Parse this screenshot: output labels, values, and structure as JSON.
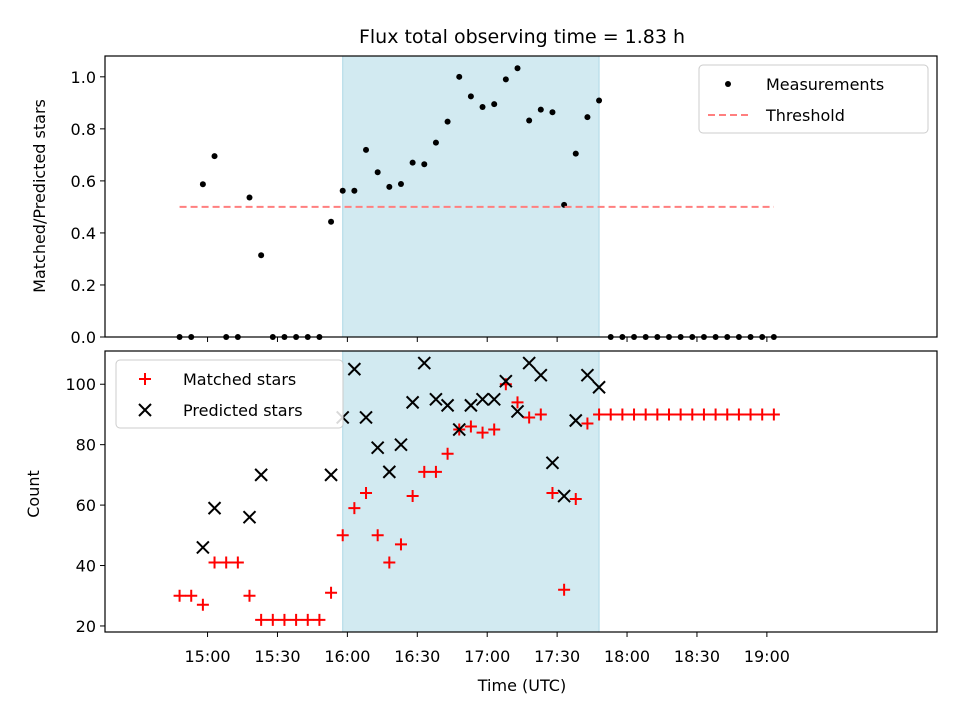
{
  "chart_data": [
    {
      "type": "scatter",
      "title": "Flux total observing time = 1.83 h",
      "ylabel": "Matched/Predicted stars",
      "xlabel": "",
      "ylim": [
        0,
        1.08
      ],
      "xlim_minutes_of_day": [
        856,
        1213
      ],
      "yticks": [
        "0.0",
        "0.2",
        "0.4",
        "0.6",
        "0.8",
        "1.0"
      ],
      "grid": false,
      "legend_position": "top-right",
      "highlight_span": [
        "15:58",
        "17:48"
      ],
      "highlight_color": "#add8e6",
      "series": [
        {
          "name": "Measurements",
          "marker": "dot",
          "color": "#000000",
          "x": [
            "14:48",
            "14:53",
            "14:58",
            "15:03",
            "15:08",
            "15:13",
            "15:18",
            "15:23",
            "15:28",
            "15:33",
            "15:38",
            "15:43",
            "15:48",
            "15:53",
            "15:58",
            "16:03",
            "16:08",
            "16:13",
            "16:18",
            "16:23",
            "16:28",
            "16:33",
            "16:38",
            "16:43",
            "16:48",
            "16:53",
            "16:58",
            "17:03",
            "17:08",
            "17:13",
            "17:18",
            "17:23",
            "17:28",
            "17:33",
            "17:38",
            "17:43",
            "17:48",
            "17:53",
            "17:58",
            "18:03",
            "18:08",
            "18:13",
            "18:18",
            "18:23",
            "18:28",
            "18:33",
            "18:38",
            "18:43",
            "18:48",
            "18:53",
            "18:58",
            "19:03"
          ],
          "y": [
            0,
            0,
            0.587,
            0.695,
            0,
            0,
            0.536,
            0.314,
            0,
            0,
            0,
            0,
            0,
            0.443,
            0.562,
            0.562,
            0.719,
            0.633,
            0.577,
            0.588,
            0.67,
            0.664,
            0.747,
            0.828,
            1.0,
            0.925,
            0.884,
            0.895,
            0.99,
            1.033,
            0.832,
            0.874,
            0.864,
            0.508,
            0.705,
            0.845,
            0.909,
            0,
            0,
            0,
            0,
            0,
            0,
            0,
            0,
            0,
            0,
            0,
            0,
            0,
            0,
            0
          ]
        },
        {
          "name": "Threshold",
          "marker": "dashed-line",
          "color": "#ff7f7f",
          "x": [
            "14:48",
            "19:03"
          ],
          "y": [
            0.5,
            0.5
          ]
        }
      ]
    },
    {
      "type": "scatter",
      "title": "",
      "ylabel": "Count",
      "xlabel": "Time (UTC)",
      "ylim": [
        18,
        111
      ],
      "xlim_minutes_of_day": [
        856,
        1213
      ],
      "yticks": [
        "20",
        "40",
        "60",
        "80",
        "100"
      ],
      "xticks": [
        "15:00",
        "15:30",
        "16:00",
        "16:30",
        "17:00",
        "17:30",
        "18:00",
        "18:30",
        "19:00"
      ],
      "grid": false,
      "legend_position": "top-left",
      "highlight_span": [
        "15:58",
        "17:48"
      ],
      "highlight_color": "#add8e6",
      "series": [
        {
          "name": "Matched stars",
          "marker": "plus",
          "color": "#ff0000",
          "x": [
            "14:48",
            "14:53",
            "14:58",
            "15:03",
            "15:08",
            "15:13",
            "15:18",
            "15:23",
            "15:28",
            "15:33",
            "15:38",
            "15:43",
            "15:48",
            "15:53",
            "15:58",
            "16:03",
            "16:08",
            "16:13",
            "16:18",
            "16:23",
            "16:28",
            "16:33",
            "16:38",
            "16:43",
            "16:48",
            "16:53",
            "16:58",
            "17:03",
            "17:08",
            "17:13",
            "17:18",
            "17:23",
            "17:28",
            "17:33",
            "17:38",
            "17:43",
            "17:48",
            "17:53",
            "17:58",
            "18:03",
            "18:08",
            "18:13",
            "18:18",
            "18:23",
            "18:28",
            "18:33",
            "18:38",
            "18:43",
            "18:48",
            "18:53",
            "18:58",
            "19:03"
          ],
          "y": [
            30,
            30,
            27,
            41,
            41,
            41,
            30,
            22,
            22,
            22,
            22,
            22,
            22,
            31,
            50,
            59,
            64,
            50,
            41,
            47,
            63,
            71,
            71,
            77,
            85,
            86,
            84,
            85,
            100,
            94,
            89,
            90,
            64,
            32,
            62,
            87,
            90,
            90,
            90,
            90,
            90,
            90,
            90,
            90,
            90,
            90,
            90,
            90,
            90,
            90,
            90,
            90
          ]
        },
        {
          "name": "Predicted stars",
          "marker": "x",
          "color": "#000000",
          "x": [
            "14:58",
            "15:03",
            "15:18",
            "15:23",
            "15:53",
            "15:58",
            "16:03",
            "16:08",
            "16:13",
            "16:18",
            "16:23",
            "16:28",
            "16:33",
            "16:38",
            "16:43",
            "16:48",
            "16:53",
            "16:58",
            "17:03",
            "17:08",
            "17:13",
            "17:18",
            "17:23",
            "17:28",
            "17:33",
            "17:38",
            "17:43",
            "17:48"
          ],
          "y": [
            46,
            59,
            56,
            70,
            70,
            89,
            105,
            89,
            79,
            71,
            80,
            94,
            107,
            95,
            93,
            85,
            93,
            95,
            95,
            101,
            91,
            107,
            103,
            74,
            63,
            88,
            103,
            99
          ]
        }
      ]
    }
  ]
}
